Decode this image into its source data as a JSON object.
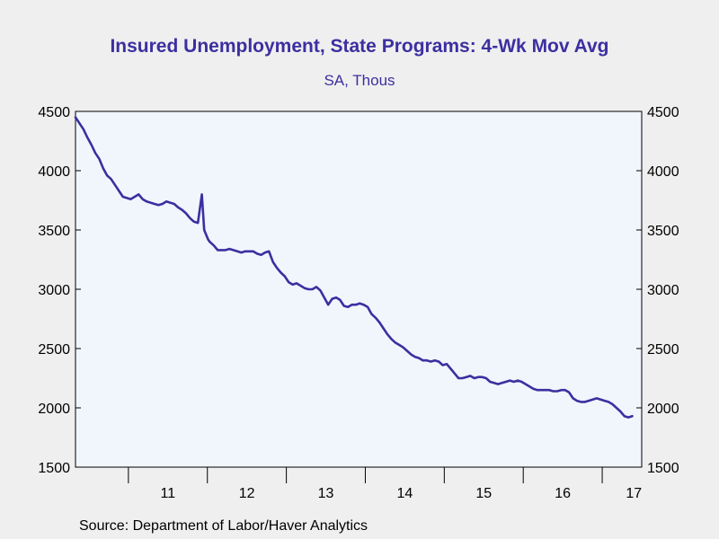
{
  "chart_data": {
    "type": "line",
    "title": "Insured Unemployment, State Programs: 4-Wk Mov Avg",
    "subtitle": "SA, Thous",
    "xlabel": "",
    "ylabel": "",
    "ylim": [
      1500,
      4500
    ],
    "xlim": [
      2010.33,
      2017.5
    ],
    "y_ticks": [
      1500,
      2000,
      2500,
      3000,
      3500,
      4000,
      4500
    ],
    "y_tick_labels": [
      "1500",
      "2000",
      "2500",
      "3000",
      "3500",
      "4000",
      "4500"
    ],
    "x_tick_labels": [
      {
        "label": "11",
        "x": 2011.5
      },
      {
        "label": "12",
        "x": 2012.5
      },
      {
        "label": "13",
        "x": 2013.5
      },
      {
        "label": "14",
        "x": 2014.5
      },
      {
        "label": "15",
        "x": 2015.5
      },
      {
        "label": "16",
        "x": 2016.5
      },
      {
        "label": "17",
        "x": 2017.4
      }
    ],
    "x_year_boundaries": [
      2011,
      2012,
      2013,
      2014,
      2015,
      2016,
      2017
    ],
    "grid": false,
    "axes": "dual y (left and right, same scale)",
    "series": [
      {
        "color": "#3c2fa0",
        "x": [
          2010.33,
          2010.38,
          2010.43,
          2010.48,
          2010.53,
          2010.58,
          2010.63,
          2010.68,
          2010.73,
          2010.78,
          2010.83,
          2010.88,
          2010.93,
          2010.98,
          2011.03,
          2011.08,
          2011.13,
          2011.18,
          2011.23,
          2011.28,
          2011.33,
          2011.38,
          2011.43,
          2011.48,
          2011.53,
          2011.58,
          2011.63,
          2011.68,
          2011.73,
          2011.78,
          2011.83,
          2011.88,
          2011.93,
          2011.96,
          2011.99,
          2012.01,
          2012.03,
          2012.08,
          2012.13,
          2012.18,
          2012.23,
          2012.28,
          2012.33,
          2012.38,
          2012.43,
          2012.48,
          2012.53,
          2012.58,
          2012.63,
          2012.68,
          2012.73,
          2012.78,
          2012.83,
          2012.88,
          2012.93,
          2012.98,
          2013.03,
          2013.08,
          2013.13,
          2013.18,
          2013.23,
          2013.28,
          2013.33,
          2013.38,
          2013.43,
          2013.48,
          2013.53,
          2013.58,
          2013.63,
          2013.68,
          2013.73,
          2013.78,
          2013.83,
          2013.88,
          2013.93,
          2013.98,
          2014.03,
          2014.08,
          2014.13,
          2014.18,
          2014.23,
          2014.28,
          2014.33,
          2014.38,
          2014.43,
          2014.48,
          2014.53,
          2014.58,
          2014.63,
          2014.68,
          2014.73,
          2014.78,
          2014.83,
          2014.88,
          2014.93,
          2014.98,
          2015.03,
          2015.08,
          2015.13,
          2015.18,
          2015.23,
          2015.28,
          2015.33,
          2015.38,
          2015.43,
          2015.48,
          2015.53,
          2015.58,
          2015.63,
          2015.68,
          2015.73,
          2015.78,
          2015.83,
          2015.88,
          2015.93,
          2015.98,
          2016.03,
          2016.08,
          2016.13,
          2016.18,
          2016.23,
          2016.28,
          2016.33,
          2016.38,
          2016.43,
          2016.48,
          2016.53,
          2016.58,
          2016.63,
          2016.68,
          2016.73,
          2016.78,
          2016.83,
          2016.88,
          2016.93,
          2016.98,
          2017.03,
          2017.08,
          2017.13,
          2017.18,
          2017.23,
          2017.28,
          2017.33,
          2017.38
        ],
        "values": [
          4450,
          4400,
          4350,
          4280,
          4220,
          4150,
          4100,
          4020,
          3960,
          3930,
          3880,
          3830,
          3780,
          3770,
          3760,
          3780,
          3800,
          3760,
          3740,
          3730,
          3720,
          3710,
          3720,
          3740,
          3730,
          3720,
          3690,
          3670,
          3640,
          3600,
          3570,
          3560,
          3800,
          3500,
          3450,
          3420,
          3400,
          3370,
          3330,
          3330,
          3330,
          3340,
          3330,
          3320,
          3310,
          3320,
          3320,
          3320,
          3300,
          3290,
          3310,
          3320,
          3230,
          3180,
          3140,
          3110,
          3060,
          3040,
          3050,
          3030,
          3010,
          3000,
          3000,
          3020,
          2990,
          2930,
          2870,
          2920,
          2930,
          2910,
          2860,
          2850,
          2870,
          2870,
          2880,
          2870,
          2850,
          2790,
          2760,
          2720,
          2670,
          2620,
          2580,
          2550,
          2530,
          2510,
          2480,
          2450,
          2430,
          2420,
          2400,
          2400,
          2390,
          2400,
          2390,
          2360,
          2370,
          2330,
          2290,
          2250,
          2250,
          2260,
          2270,
          2250,
          2260,
          2260,
          2250,
          2220,
          2210,
          2200,
          2210,
          2220,
          2230,
          2220,
          2230,
          2220,
          2200,
          2180,
          2160,
          2150,
          2150,
          2150,
          2150,
          2140,
          2140,
          2150,
          2150,
          2130,
          2080,
          2060,
          2050,
          2050,
          2060,
          2070,
          2080,
          2070,
          2060,
          2050,
          2030,
          2000,
          1970,
          1930,
          1920,
          1930
        ]
      }
    ]
  },
  "source_note": "Source:  Department of Labor/Haver Analytics"
}
